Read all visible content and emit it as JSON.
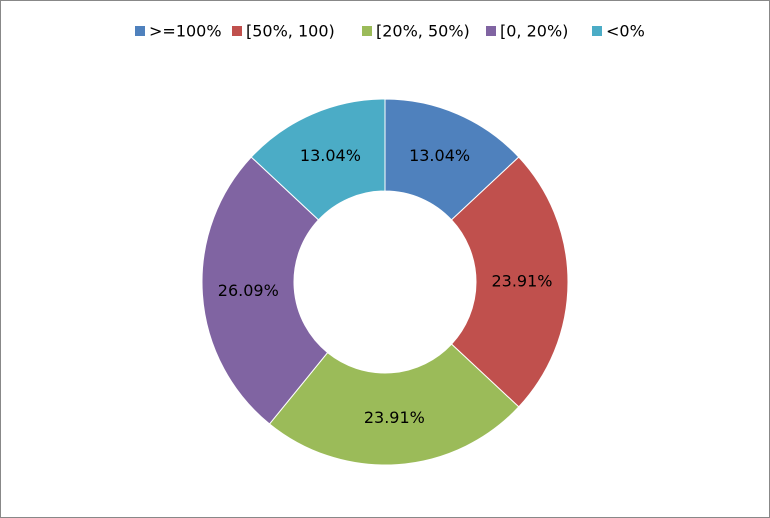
{
  "chart_data": {
    "type": "pie",
    "donut": true,
    "categories": [
      ">=100%",
      "[50%, 100)",
      "[20%, 50%)",
      "[0, 20%)",
      "<0%"
    ],
    "values": [
      13.04,
      23.91,
      23.91,
      26.09,
      13.04
    ],
    "value_labels": [
      "13.04%",
      "23.91%",
      "23.91%",
      "26.09%",
      "13.04%"
    ],
    "colors": [
      "#4f81bd",
      "#c0504d",
      "#9bbb59",
      "#8064a2",
      "#4bacc6"
    ],
    "legend": "top"
  }
}
